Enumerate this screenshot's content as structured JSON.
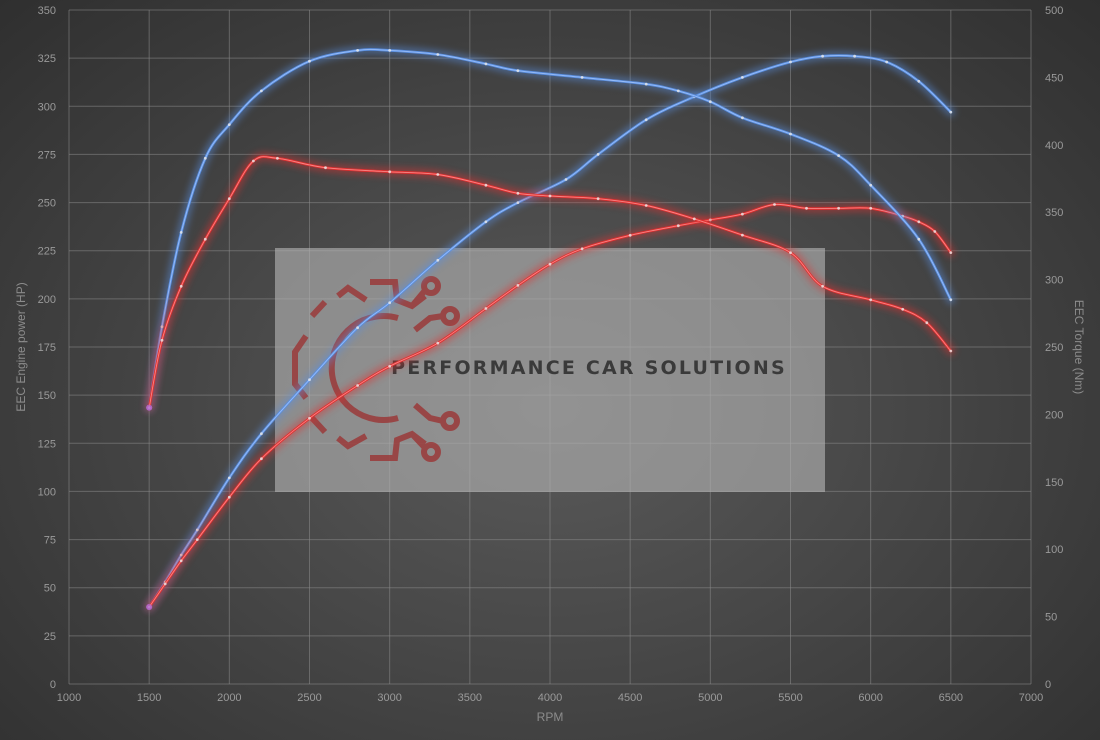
{
  "chart_data": {
    "type": "line",
    "xlabel": "RPM",
    "ylabel_left": "EEC Engine power (HP)",
    "ylabel_right": "EEC Torque (Nm)",
    "xlim": [
      1000,
      7000
    ],
    "ylim_left": [
      0,
      350
    ],
    "ylim_right": [
      0,
      500
    ],
    "x_ticks": [
      1000,
      1500,
      2000,
      2500,
      3000,
      3500,
      4000,
      4500,
      5000,
      5500,
      6000,
      6500,
      7000
    ],
    "y_ticks_left": [
      0,
      25,
      50,
      75,
      100,
      125,
      150,
      175,
      200,
      225,
      250,
      275,
      300,
      325,
      350
    ],
    "y_ticks_right": [
      0,
      50,
      100,
      150,
      200,
      250,
      300,
      350,
      400,
      450,
      500
    ],
    "grid": true,
    "colors": {
      "tuned": "#5a8fe0",
      "stock": "#e03030"
    },
    "series": [
      {
        "axis": "left",
        "color": "#5a8fe0",
        "x": [
          1500,
          1600,
          1700,
          1800,
          2000,
          2200,
          2500,
          2800,
          3000,
          3300,
          3600,
          3800,
          4100,
          4300,
          4600,
          4900,
          5200,
          5500,
          5700,
          5900,
          6100,
          6300,
          6500
        ],
        "values": [
          40,
          53,
          67,
          80,
          107,
          130,
          158,
          185,
          198,
          220,
          240,
          250,
          262,
          275,
          293,
          305,
          315,
          323,
          326,
          326,
          323,
          313,
          297
        ]
      },
      {
        "axis": "left",
        "color": "#e03030",
        "x": [
          1500,
          1600,
          1700,
          1800,
          2000,
          2200,
          2500,
          2800,
          3000,
          3300,
          3600,
          3800,
          4000,
          4200,
          4500,
          4800,
          5000,
          5200,
          5400,
          5600,
          5800,
          6000,
          6200,
          6300,
          6400,
          6500
        ],
        "values": [
          40,
          52,
          64,
          75,
          97,
          117,
          138,
          155,
          165,
          177,
          195,
          207,
          218,
          226,
          233,
          238,
          241,
          244,
          249,
          247,
          247,
          247,
          243,
          240,
          235,
          224
        ]
      },
      {
        "axis": "right",
        "color": "#5a8fe0",
        "x": [
          1500,
          1580,
          1700,
          1850,
          2000,
          2200,
          2500,
          2800,
          3000,
          3300,
          3600,
          3800,
          4200,
          4600,
          4800,
          5000,
          5200,
          5500,
          5800,
          6000,
          6300,
          6500
        ],
        "values": [
          205,
          265,
          335,
          390,
          415,
          440,
          462,
          470,
          470,
          467,
          460,
          455,
          450,
          445,
          440,
          432,
          420,
          408,
          392,
          370,
          330,
          285
        ]
      },
      {
        "axis": "right",
        "color": "#e03030",
        "x": [
          1500,
          1580,
          1700,
          1850,
          2000,
          2150,
          2300,
          2600,
          3000,
          3300,
          3600,
          3800,
          4000,
          4300,
          4600,
          4900,
          5200,
          5500,
          5700,
          6000,
          6200,
          6350,
          6500
        ],
        "values": [
          205,
          255,
          295,
          330,
          360,
          388,
          390,
          383,
          380,
          378,
          370,
          364,
          362,
          360,
          355,
          345,
          333,
          320,
          295,
          285,
          278,
          268,
          247
        ]
      }
    ]
  },
  "watermark": {
    "text": "PERFORMANCE CAR SOLUTIONS",
    "icon": "gear-circuit-icon",
    "icon_color": "#9a3a3a"
  }
}
